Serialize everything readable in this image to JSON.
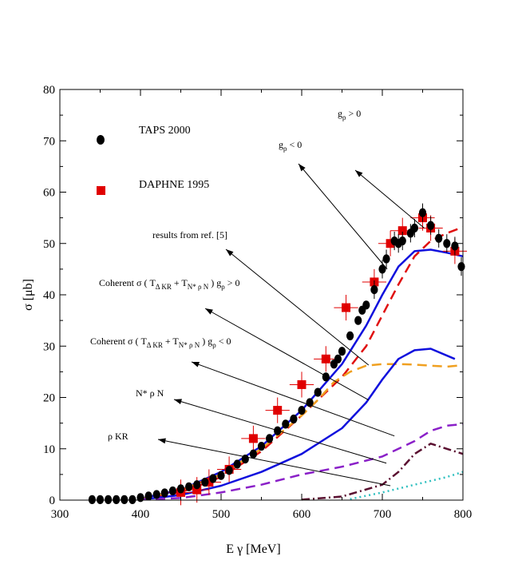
{
  "chart_data": {
    "type": "line",
    "xlabel": "E γ [MeV]",
    "ylabel": "σ [μb]",
    "xlim": [
      300,
      800
    ],
    "ylim": [
      0,
      80
    ],
    "x_ticks": [
      "300",
      "400",
      "500",
      "600",
      "700",
      "800"
    ],
    "y_ticks": [
      "0",
      "10",
      "20",
      "30",
      "40",
      "50",
      "60",
      "70",
      "80"
    ],
    "legend": [
      {
        "label": "TAPS 2000",
        "marker": "circle",
        "color": "#000000"
      },
      {
        "label": "DAPHNE 1995",
        "marker": "square",
        "color": "#e00000"
      }
    ],
    "taps_2000": [
      [
        340,
        0.1
      ],
      [
        350,
        0.1
      ],
      [
        360,
        0.1
      ],
      [
        370,
        0.1
      ],
      [
        380,
        0.1
      ],
      [
        390,
        0.1
      ],
      [
        400,
        0.5
      ],
      [
        410,
        0.8
      ],
      [
        420,
        1.1
      ],
      [
        430,
        1.4
      ],
      [
        440,
        1.8
      ],
      [
        450,
        2.2
      ],
      [
        460,
        2.6
      ],
      [
        470,
        3.0
      ],
      [
        480,
        3.5
      ],
      [
        490,
        4.2
      ],
      [
        500,
        4.8
      ],
      [
        510,
        5.8
      ],
      [
        520,
        7.0
      ],
      [
        530,
        8.0
      ],
      [
        540,
        9.0
      ],
      [
        550,
        10.5
      ],
      [
        560,
        12.0
      ],
      [
        570,
        13.5
      ],
      [
        580,
        14.8
      ],
      [
        590,
        15.8
      ],
      [
        600,
        17.5
      ],
      [
        610,
        19.0
      ],
      [
        620,
        21.0
      ],
      [
        630,
        24.0
      ],
      [
        640,
        26.5
      ],
      [
        645,
        27.5
      ],
      [
        650,
        29.0
      ],
      [
        660,
        32.0
      ],
      [
        670,
        35.0
      ],
      [
        675,
        37.0
      ],
      [
        680,
        38.0
      ],
      [
        690,
        41.0
      ],
      [
        700,
        45.0
      ],
      [
        705,
        47.0
      ],
      [
        715,
        50.5
      ],
      [
        720,
        50.0
      ],
      [
        725,
        50.5
      ],
      [
        735,
        52.0
      ],
      [
        740,
        53.0
      ],
      [
        750,
        56.0
      ],
      [
        760,
        53.5
      ],
      [
        770,
        51.0
      ],
      [
        780,
        50.0
      ],
      [
        790,
        49.5
      ],
      [
        798,
        45.5
      ]
    ],
    "daphne_1995": [
      [
        450,
        1.5
      ],
      [
        470,
        2.0
      ],
      [
        485,
        3.5
      ],
      [
        510,
        6.0
      ],
      [
        540,
        12.0
      ],
      [
        570,
        17.5
      ],
      [
        600,
        22.5
      ],
      [
        630,
        27.5
      ],
      [
        655,
        37.5
      ],
      [
        690,
        42.5
      ],
      [
        710,
        50.0
      ],
      [
        725,
        52.5
      ],
      [
        750,
        55.0
      ],
      [
        760,
        53.0
      ],
      [
        790,
        48.5
      ]
    ],
    "series": [
      {
        "name": "g ρ > 0",
        "color": "#1010dd",
        "style": "solid",
        "points": [
          [
            400,
            0.3
          ],
          [
            450,
            2.0
          ],
          [
            500,
            5.5
          ],
          [
            550,
            10.5
          ],
          [
            600,
            17.5
          ],
          [
            650,
            26.5
          ],
          [
            680,
            34.0
          ],
          [
            700,
            40.0
          ],
          [
            720,
            45.5
          ],
          [
            740,
            48.5
          ],
          [
            760,
            48.8
          ],
          [
            780,
            48.2
          ],
          [
            800,
            47.5
          ]
        ]
      },
      {
        "name": "g ρ < 0",
        "color": "#e01010",
        "style": "dashed",
        "points": [
          [
            400,
            0.2
          ],
          [
            450,
            1.5
          ],
          [
            500,
            4.5
          ],
          [
            550,
            9.5
          ],
          [
            600,
            16.5
          ],
          [
            650,
            24.0
          ],
          [
            680,
            30.0
          ],
          [
            700,
            36.0
          ],
          [
            720,
            42.0
          ],
          [
            740,
            47.5
          ],
          [
            760,
            50.5
          ],
          [
            780,
            52.0
          ],
          [
            800,
            53.2
          ]
        ]
      },
      {
        "name": "results from ref. [5]",
        "color": "#f0a020",
        "style": "dashed",
        "points": [
          [
            400,
            0.2
          ],
          [
            450,
            2.0
          ],
          [
            500,
            5.0
          ],
          [
            550,
            10.0
          ],
          [
            600,
            16.5
          ],
          [
            620,
            19.5
          ],
          [
            640,
            23.0
          ],
          [
            660,
            25.0
          ],
          [
            680,
            26.2
          ],
          [
            700,
            26.5
          ],
          [
            720,
            26.5
          ],
          [
            740,
            26.4
          ],
          [
            760,
            26.2
          ],
          [
            780,
            26.0
          ],
          [
            800,
            26.3
          ]
        ]
      },
      {
        "name": "Coherent σ (T ΔKR + T N*ρN) g ρ > 0",
        "color": "#1010dd",
        "style": "solid",
        "points": [
          [
            400,
            0.1
          ],
          [
            450,
            1.0
          ],
          [
            500,
            2.8
          ],
          [
            550,
            5.5
          ],
          [
            600,
            9.0
          ],
          [
            650,
            14.0
          ],
          [
            680,
            19.0
          ],
          [
            700,
            23.5
          ],
          [
            720,
            27.5
          ],
          [
            740,
            29.2
          ],
          [
            760,
            29.5
          ],
          [
            790,
            27.5
          ]
        ]
      },
      {
        "name": "Coherent σ (T ΔKR + T N*ρN) g ρ < 0",
        "color": "#8a20c8",
        "style": "dashed",
        "points": [
          [
            400,
            0.1
          ],
          [
            450,
            0.4
          ],
          [
            500,
            1.5
          ],
          [
            550,
            3.0
          ],
          [
            600,
            5.0
          ],
          [
            650,
            6.5
          ],
          [
            700,
            8.5
          ],
          [
            740,
            11.5
          ],
          [
            760,
            13.5
          ],
          [
            780,
            14.5
          ],
          [
            800,
            14.8
          ]
        ]
      },
      {
        "name": "N* ρ N",
        "color": "#5a1030",
        "style": "dashdot",
        "points": [
          [
            600,
            0.1
          ],
          [
            650,
            0.7
          ],
          [
            700,
            3.0
          ],
          [
            720,
            5.5
          ],
          [
            740,
            9.0
          ],
          [
            760,
            11.0
          ],
          [
            780,
            10.0
          ],
          [
            800,
            9.0
          ]
        ]
      },
      {
        "name": "ρ KR",
        "color": "#30c0c0",
        "style": "dotted",
        "points": [
          [
            660,
            0.2
          ],
          [
            700,
            1.5
          ],
          [
            740,
            3.0
          ],
          [
            780,
            4.5
          ],
          [
            800,
            5.5
          ]
        ]
      }
    ],
    "annotations": [
      {
        "id": "gplus",
        "text_pre": "g",
        "sub": "ρ",
        "text_post": " > 0"
      },
      {
        "id": "gminus",
        "text_pre": "g",
        "sub": "ρ",
        "text_post": " < 0"
      },
      {
        "id": "ref5",
        "text": "results from ref. [5]"
      },
      {
        "id": "coh_plus",
        "text": "Coherent  σ  ( T",
        "sub1": "Δ KR",
        "mid": " + T",
        "sub2": "N* ρ N",
        "tail": " )  g",
        "sub3": "ρ",
        "end": "  > 0"
      },
      {
        "id": "coh_minus",
        "text": "Coherent  σ  ( T",
        "sub1": "Δ KR",
        "mid": " + T",
        "sub2": "N* ρ N",
        "tail": " )  g",
        "sub3": "ρ",
        "end": "  < 0"
      },
      {
        "id": "nstar",
        "text": "N* ρ N"
      },
      {
        "id": "rhokr",
        "text": "ρ KR"
      }
    ]
  }
}
